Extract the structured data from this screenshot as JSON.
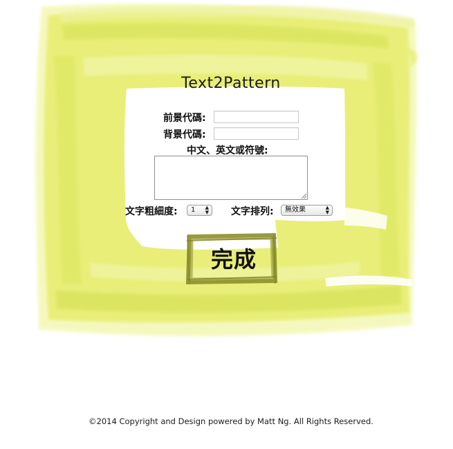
{
  "page": {
    "title": "Text2Pattern"
  },
  "form": {
    "foreground_label": "前景代碼:",
    "foreground_value": "",
    "background_label": "背景代碼:",
    "background_value": "",
    "text_label": "中文、英文或符號:",
    "text_value": "",
    "weight_label": "文字粗細度:",
    "weight_value": "1",
    "arrangement_label": "文字排列:",
    "arrangement_value": "無效果",
    "submit_label": "完成"
  },
  "colors": {
    "paint_light": "#f3f6a6",
    "paint_mid": "#e6ee6a",
    "paint_dark": "#dbe55a",
    "button_frame": "#8c8f2c"
  },
  "footer": {
    "text": "©2014 Copyright and Design powered by Matt Ng. All Rights Reserved."
  }
}
